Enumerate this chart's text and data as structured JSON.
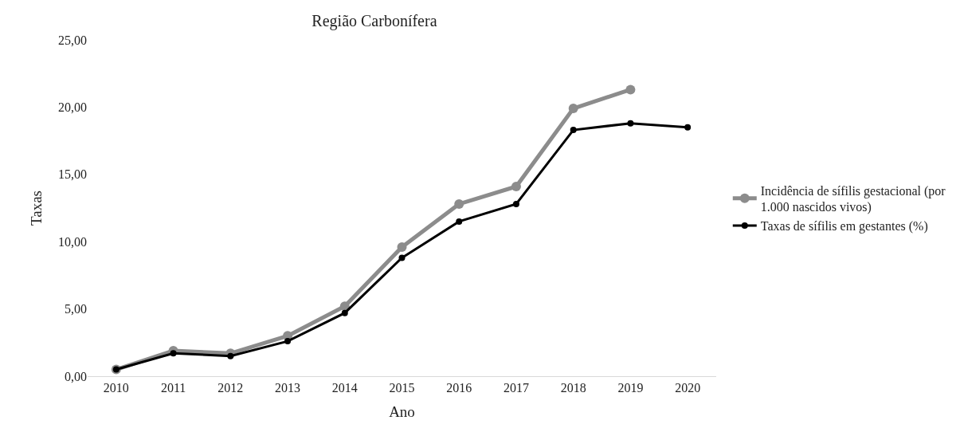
{
  "chart_data": {
    "type": "line",
    "title": "Região Carbonífera",
    "xlabel": "Ano",
    "ylabel": "Taxas",
    "categories": [
      "2010",
      "2011",
      "2012",
      "2013",
      "2014",
      "2015",
      "2016",
      "2017",
      "2018",
      "2019",
      "2020"
    ],
    "series": [
      {
        "name": "Incidência de sífilis gestacional (por 1.000 nascidos vivos)",
        "color": "#8c8c8c",
        "values": [
          0.5,
          1.9,
          1.7,
          3.0,
          5.2,
          9.6,
          12.8,
          14.1,
          19.9,
          21.3,
          null
        ]
      },
      {
        "name": "Taxas de sífilis em gestantes (%)",
        "color": "#000000",
        "values": [
          0.5,
          1.7,
          1.5,
          2.6,
          4.7,
          8.8,
          11.5,
          12.8,
          18.3,
          18.8,
          18.5
        ]
      }
    ],
    "ylim": [
      0,
      25
    ],
    "yticks": [
      {
        "value": 0,
        "label": "0,00"
      },
      {
        "value": 5,
        "label": "5,00"
      },
      {
        "value": 10,
        "label": "10,00"
      },
      {
        "value": 15,
        "label": "15,00"
      },
      {
        "value": 20,
        "label": "20,00"
      },
      {
        "value": 25,
        "label": "25,00"
      }
    ],
    "grid": false,
    "legend": "right",
    "marker": "circle",
    "line_style": "solid"
  }
}
